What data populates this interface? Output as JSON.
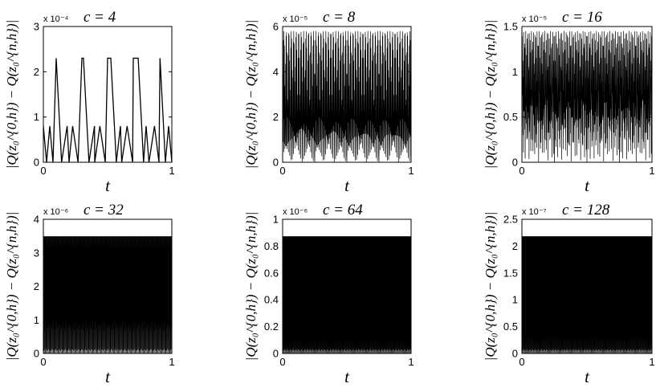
{
  "chart_data": [
    {
      "type": "line",
      "title": "c = 4",
      "scale_label": "x 10⁻⁴",
      "xlabel": "t",
      "ylabel": "|Q(z₀^{0,h}) − Q(z₀^{n,h})|",
      "xlim": [
        0,
        1
      ],
      "ylim": [
        0,
        3
      ],
      "xticks": [
        "0",
        "1"
      ],
      "yticks": [
        "0",
        "1",
        "2",
        "3"
      ],
      "series": [
        {
          "x": [
            0.0,
            0.025,
            0.05,
            0.075,
            0.1,
            0.142,
            0.185,
            0.2,
            0.228,
            0.27,
            0.3,
            0.312,
            0.355,
            0.398,
            0.4,
            0.44,
            0.482,
            0.5,
            0.525,
            0.568,
            0.6,
            0.61,
            0.652,
            0.695,
            0.7,
            0.738,
            0.78,
            0.8,
            0.822,
            0.865,
            0.9,
            0.908,
            0.95,
            0.975,
            1.0
          ],
          "y": [
            0.8,
            0.0,
            0.8,
            0.0,
            2.3,
            0.0,
            0.8,
            0.0,
            0.8,
            0.0,
            2.3,
            2.3,
            0.0,
            0.8,
            0.0,
            0.8,
            0.0,
            2.3,
            2.3,
            0.0,
            0.8,
            0.0,
            0.8,
            0.0,
            2.3,
            2.3,
            0.0,
            0.8,
            0.0,
            0.8,
            0.0,
            2.3,
            0.0,
            0.8,
            0.0
          ],
          "approximate": true
        }
      ]
    },
    {
      "type": "line",
      "title": "c = 8",
      "scale_label": "x 10⁻⁵",
      "xlabel": "t",
      "ylabel": "|Q(z₀^{0,h}) − Q(z₀^{n,h})|",
      "xlim": [
        0,
        1
      ],
      "ylim": [
        0,
        6
      ],
      "xticks": [
        "0",
        "1"
      ],
      "yticks": [
        "0",
        "2",
        "4",
        "6"
      ],
      "oscillation": {
        "cycles": 26,
        "peak_max": 5.8,
        "secondary_peak": 2.0,
        "trough_min": 0.0
      }
    },
    {
      "type": "line",
      "title": "c = 16",
      "scale_label": "x 10⁻⁵",
      "xlabel": "t",
      "ylabel": "|Q(z₀^{0,h}) − Q(z₀^{n,h})|",
      "xlim": [
        0,
        1
      ],
      "ylim": [
        0,
        1.5
      ],
      "xticks": [
        "0",
        "1"
      ],
      "yticks": [
        "0",
        "0.5",
        "1",
        "1.5"
      ],
      "oscillation": {
        "cycles": 58,
        "peak_max": 1.45,
        "secondary_peak": 0.8,
        "trough_min": 0.0
      }
    },
    {
      "type": "line",
      "title": "c = 32",
      "scale_label": "x 10⁻⁶",
      "xlabel": "t",
      "ylabel": "|Q(z₀^{0,h}) − Q(z₀^{n,h})|",
      "xlim": [
        0,
        1
      ],
      "ylim": [
        0,
        4
      ],
      "xticks": [
        "0",
        "1"
      ],
      "yticks": [
        "0",
        "1",
        "2",
        "3",
        "4"
      ],
      "oscillation": {
        "cycles": 130,
        "peak_max": 3.6,
        "secondary_peak": 1.8,
        "trough_min": 0.0
      }
    },
    {
      "type": "line",
      "title": "c = 64",
      "scale_label": "x 10⁻⁶",
      "xlabel": "t",
      "ylabel": "|Q(z₀^{0,h}) − Q(z₀^{n,h})|",
      "xlim": [
        0,
        1
      ],
      "ylim": [
        0,
        1
      ],
      "xticks": [
        "0",
        "1"
      ],
      "yticks": [
        "0",
        "0.2",
        "0.4",
        "0.6",
        "0.8",
        "1"
      ],
      "oscillation": {
        "cycles": 150,
        "peak_max": 0.9,
        "secondary_peak": 0.45,
        "trough_min": 0.0
      }
    },
    {
      "type": "line",
      "title": "c = 128",
      "scale_label": "x 10⁻⁷",
      "xlabel": "t",
      "ylabel": "|Q(z₀^{0,h}) − Q(z₀^{n,h})|",
      "xlim": [
        0,
        1
      ],
      "ylim": [
        0,
        2.5
      ],
      "xticks": [
        "0",
        "1"
      ],
      "yticks": [
        "0",
        "0.5",
        "1",
        "1.5",
        "2",
        "2.5"
      ],
      "oscillation": {
        "cycles": 150,
        "peak_max": 2.25,
        "secondary_peak": 1.1,
        "trough_min": 0.0
      }
    }
  ]
}
